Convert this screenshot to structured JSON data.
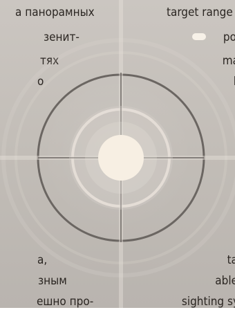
{
  "left_text": {
    "lines_top": [
      "а панорамных",
      "зенит-",
      "тях",
      "о"
    ],
    "lines_bottom": [
      "а,",
      "зным",
      "ешно про-"
    ]
  },
  "right_text": {
    "lines_top": [
      "target range f",
      "ро",
      "ma",
      "l"
    ],
    "lines_bottom": [
      "ta",
      "able",
      "sighting sy"
    ]
  },
  "colors": {
    "text": "#2b2622",
    "bg": "#c7c2bc",
    "reticle_dark": "#6b6662",
    "reticle_light": "#e5dfd8",
    "center_dot": "#f7efe3"
  },
  "icons": {
    "bullet": "pill-bullet-icon"
  }
}
